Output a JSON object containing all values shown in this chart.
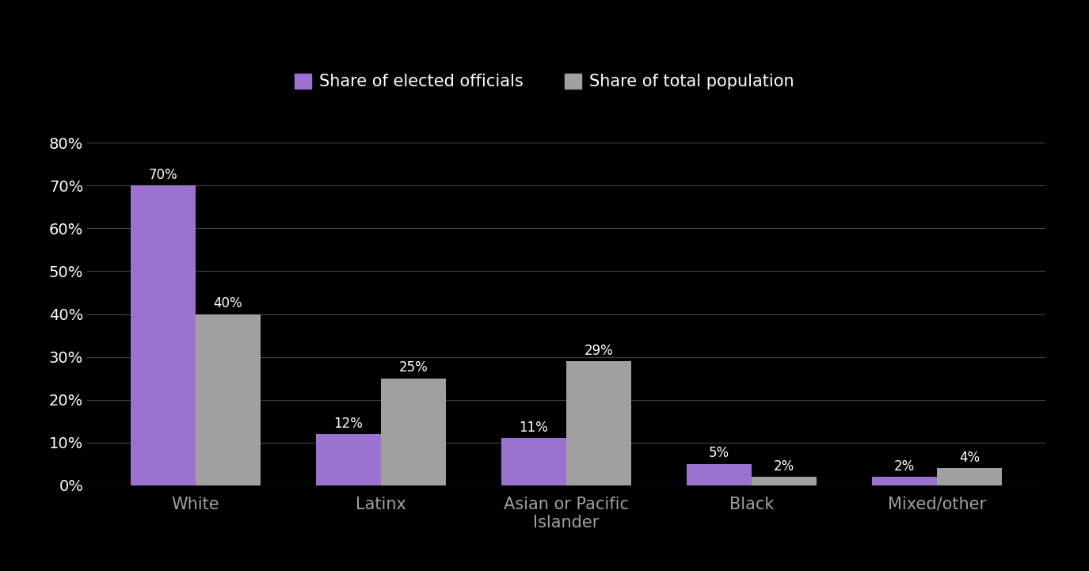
{
  "categories": [
    "White",
    "Latinx",
    "Asian or Pacific\nIslander",
    "Black",
    "Mixed/other"
  ],
  "elected_officials": [
    70,
    12,
    11,
    5,
    2
  ],
  "total_population": [
    40,
    25,
    29,
    2,
    4
  ],
  "elected_color": "#9b72cf",
  "population_color": "#a0a0a0",
  "background_color": "#000000",
  "text_color": "#ffffff",
  "xticklabel_color": "#a0a0a0",
  "legend_label_elected": "Share of elected officials",
  "legend_label_population": "Share of total population",
  "ylim": [
    0,
    80
  ],
  "yticks": [
    0,
    10,
    20,
    30,
    40,
    50,
    60,
    70,
    80
  ],
  "ytick_labels": [
    "0%",
    "10%",
    "20%",
    "30%",
    "40%",
    "50%",
    "60%",
    "70%",
    "80%"
  ],
  "bar_width": 0.35,
  "label_fontsize": 15,
  "tick_fontsize": 14,
  "legend_fontsize": 15,
  "annotation_fontsize": 12,
  "grid_color": "#444444"
}
